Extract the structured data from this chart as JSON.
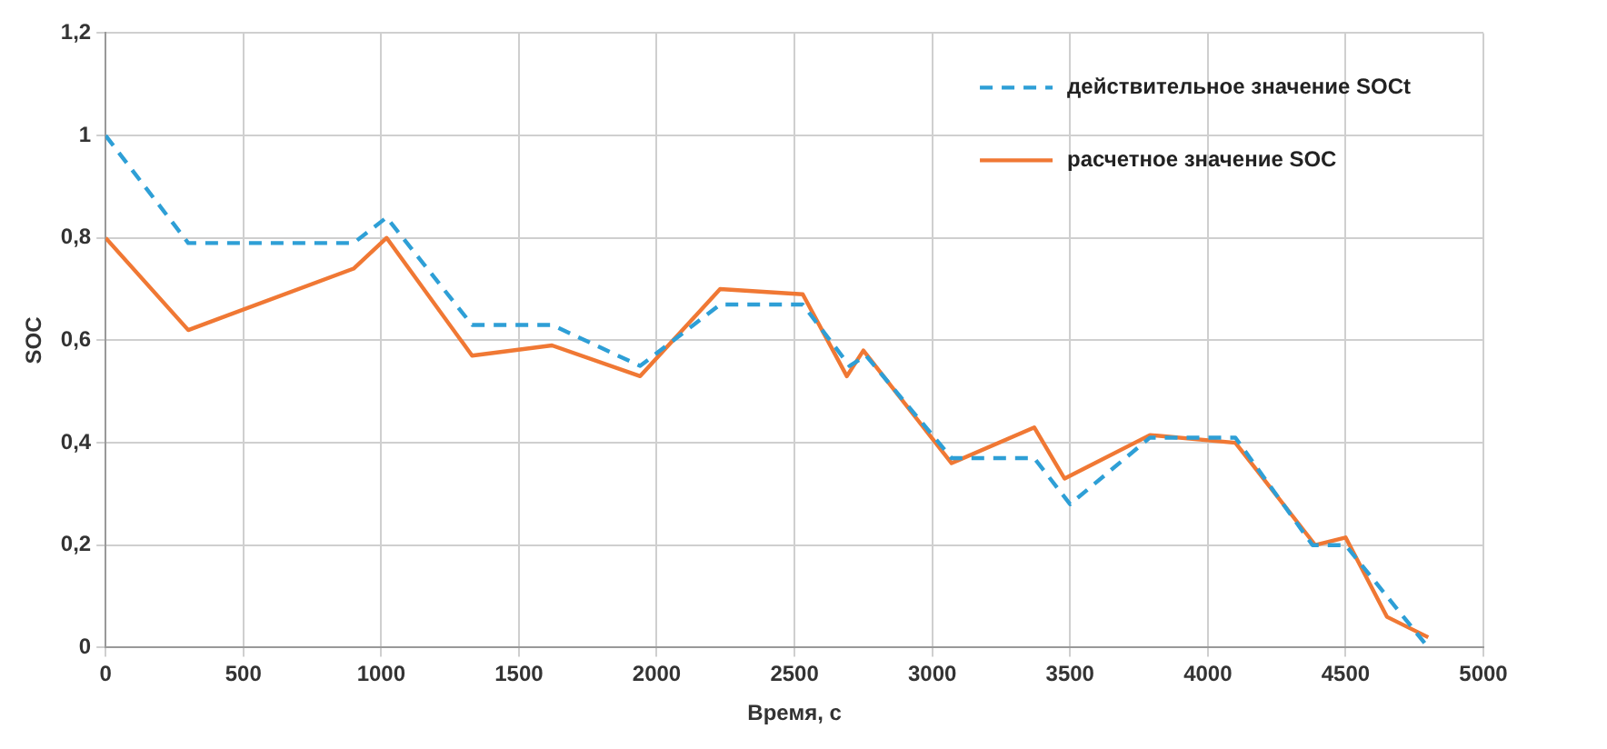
{
  "chart_data": {
    "type": "line",
    "xlabel": "Время, с",
    "ylabel": "SOC",
    "xlim": [
      0,
      5000
    ],
    "xticks": [
      0,
      500,
      1000,
      1500,
      2000,
      2500,
      3000,
      3500,
      4000,
      4500,
      5000
    ],
    "ylim": [
      0,
      1.2
    ],
    "yticks": [
      0,
      {
        "value": 0.2,
        "label": "0,2"
      },
      {
        "value": 0.4,
        "label": "0,4"
      },
      {
        "value": 0.6,
        "label": "0,6"
      },
      {
        "value": 0.8,
        "label": "0,8"
      },
      1,
      {
        "value": 1.2,
        "label": "1,2"
      }
    ],
    "grid": true,
    "legend": "top right",
    "marker": "none",
    "series": [
      {
        "name": "действительное значение SOCt",
        "color": "#2e9fd6",
        "line_style": "dashed",
        "x": [
          0,
          300,
          900,
          1020,
          1330,
          1620,
          1940,
          2230,
          2530,
          2700,
          2760,
          3070,
          3370,
          3500,
          3790,
          4100,
          4380,
          4500,
          4800
        ],
        "values": [
          1,
          0.79,
          0.79,
          0.84,
          0.63,
          0.63,
          0.55,
          0.67,
          0.67,
          0.55,
          0.57,
          0.37,
          0.37,
          0.28,
          0.41,
          0.41,
          0.2,
          0.2,
          0
        ]
      },
      {
        "name": "расчетное значение SOC",
        "color": "#f07834",
        "line_style": "solid",
        "x": [
          0,
          300,
          900,
          1020,
          1330,
          1620,
          1940,
          2230,
          2530,
          2690,
          2750,
          3070,
          3370,
          3480,
          3790,
          4100,
          4390,
          4500,
          4650,
          4800
        ],
        "values": [
          0.8,
          0.62,
          0.74,
          0.8,
          0.57,
          0.59,
          0.53,
          0.7,
          0.69,
          0.53,
          0.58,
          0.36,
          0.43,
          0.33,
          0.415,
          0.4,
          0.2,
          0.215,
          0.06,
          0.02
        ]
      }
    ]
  }
}
